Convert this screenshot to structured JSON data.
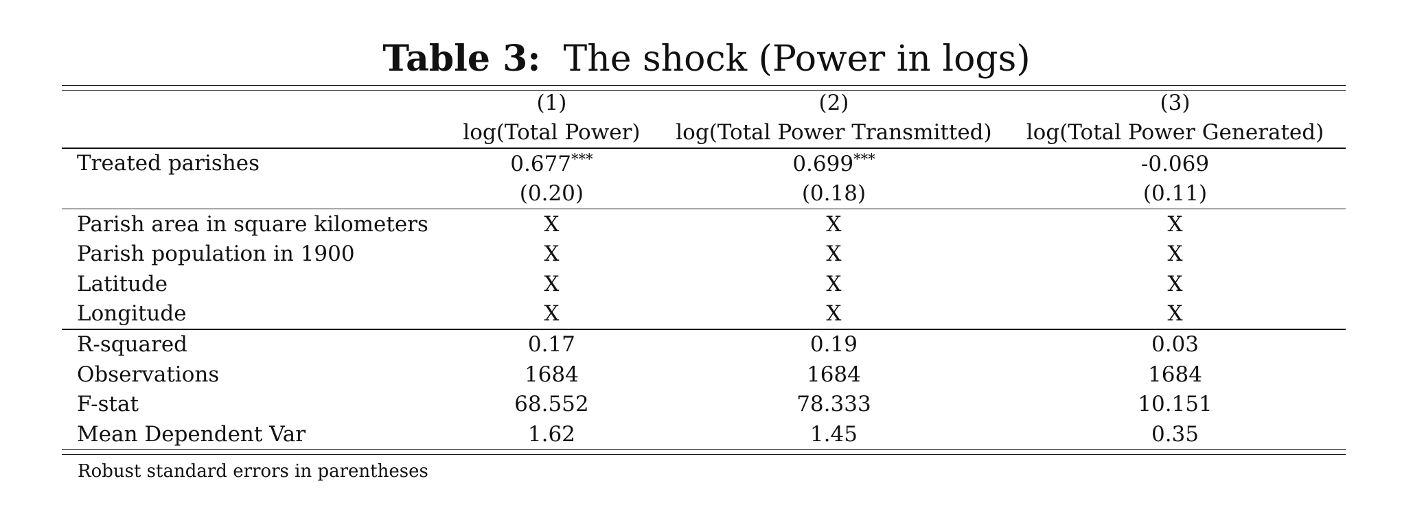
{
  "caption": {
    "label": "Table 3:",
    "title": "The shock (Power in logs)"
  },
  "header": {
    "numbers": [
      "(1)",
      "(2)",
      "(3)"
    ],
    "depvars": [
      "log(Total Power)",
      "log(Total Power Transmitted)",
      "log(Total Power Generated)"
    ]
  },
  "coef": {
    "label": "Treated parishes",
    "estimates": [
      "0.677",
      "0.699",
      "-0.069"
    ],
    "stars": [
      "***",
      "***",
      ""
    ],
    "se": [
      "(0.20)",
      "(0.18)",
      "(0.11)"
    ]
  },
  "controls": [
    {
      "label": "Parish area in square kilometers",
      "marks": [
        "X",
        "X",
        "X"
      ]
    },
    {
      "label": "Parish population in 1900",
      "marks": [
        "X",
        "X",
        "X"
      ]
    },
    {
      "label": "Latitude",
      "marks": [
        "X",
        "X",
        "X"
      ]
    },
    {
      "label": "Longitude",
      "marks": [
        "X",
        "X",
        "X"
      ]
    }
  ],
  "stats": [
    {
      "label": "R-squared",
      "values": [
        "0.17",
        "0.19",
        "0.03"
      ]
    },
    {
      "label": "Observations",
      "values": [
        "1684",
        "1684",
        "1684"
      ]
    },
    {
      "label": "F-stat",
      "values": [
        "68.552",
        "78.333",
        "10.151"
      ]
    },
    {
      "label": "Mean Dependent Var",
      "values": [
        "1.62",
        "1.45",
        "0.35"
      ]
    }
  ],
  "note": "Robust standard errors in parentheses"
}
